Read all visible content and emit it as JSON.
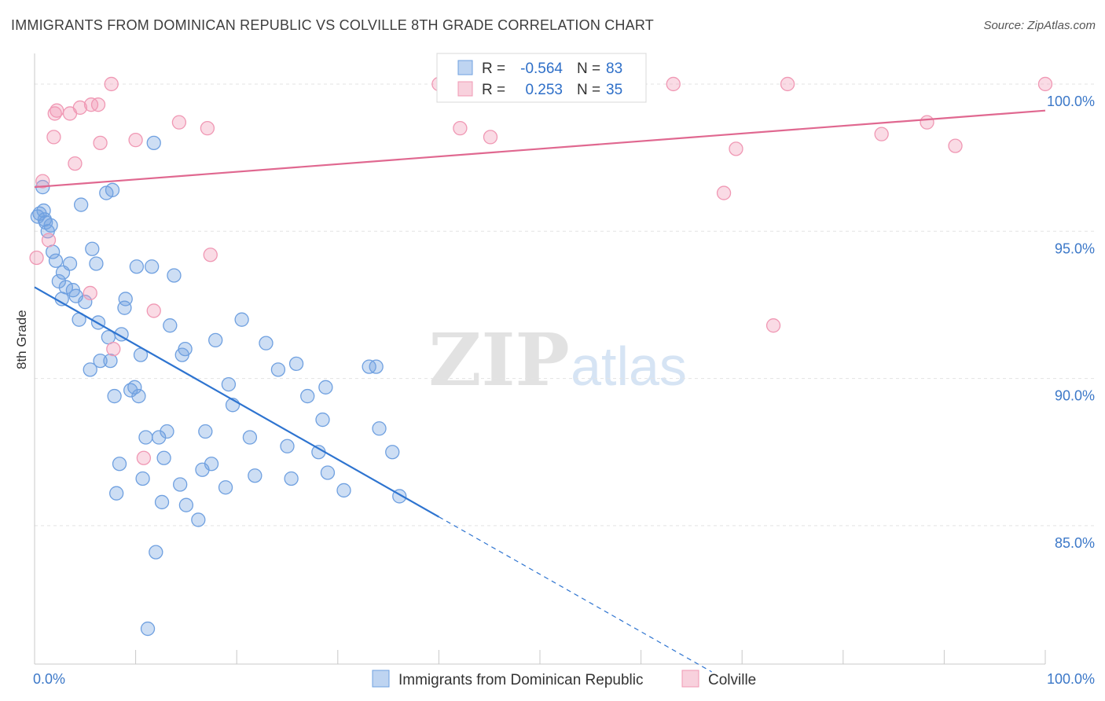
{
  "header": {
    "title": "IMMIGRANTS FROM DOMINICAN REPUBLIC VS COLVILLE 8TH GRADE CORRELATION CHART",
    "source": "Source: ZipAtlas.com"
  },
  "watermark": {
    "zip": "ZIP",
    "atlas": "atlas"
  },
  "chart_data": {
    "type": "scatter",
    "title": "IMMIGRANTS FROM DOMINICAN REPUBLIC VS COLVILLE 8TH GRADE CORRELATION CHART",
    "ylabel": "8th Grade",
    "xlim": [
      0,
      100
    ],
    "ylim": [
      80.3,
      101.2
    ],
    "x_tick_labels": [
      "0.0%",
      "100.0%"
    ],
    "y_ticks": [
      85,
      90,
      95,
      100
    ],
    "y_tick_labels": [
      "85.0%",
      "90.0%",
      "95.0%",
      "100.0%"
    ],
    "grid": true,
    "legend_position": "bottom",
    "stats": [
      {
        "r_label": "R =",
        "r_value": "-0.564",
        "n_label": "N =",
        "n_value": "83"
      },
      {
        "r_label": "R =",
        "r_value": "0.253",
        "n_label": "N =",
        "n_value": "35"
      }
    ],
    "series": [
      {
        "name": "Immigrants from Dominican Republic",
        "color": "#6fa0e0",
        "line_color": "#2e74d0",
        "trend": {
          "x": [
            0,
            40
          ],
          "y": [
            93.1,
            85.3
          ],
          "extend_to_x": 67
        },
        "points": [
          [
            0.3,
            95.5
          ],
          [
            0.8,
            96.5
          ],
          [
            0.9,
            95.7
          ],
          [
            1.0,
            95.4
          ],
          [
            1.3,
            95.0
          ],
          [
            1.6,
            95.2
          ],
          [
            1.8,
            94.3
          ],
          [
            2.1,
            94.0
          ],
          [
            2.4,
            93.3
          ],
          [
            2.7,
            92.7
          ],
          [
            2.8,
            93.6
          ],
          [
            3.1,
            93.1
          ],
          [
            3.5,
            93.9
          ],
          [
            3.8,
            93.0
          ],
          [
            4.1,
            92.8
          ],
          [
            4.4,
            92.0
          ],
          [
            4.6,
            95.9
          ],
          [
            5.0,
            92.6
          ],
          [
            5.5,
            90.3
          ],
          [
            5.7,
            94.4
          ],
          [
            6.1,
            93.9
          ],
          [
            6.3,
            91.9
          ],
          [
            6.5,
            90.6
          ],
          [
            7.1,
            96.3
          ],
          [
            7.3,
            91.4
          ],
          [
            7.5,
            90.6
          ],
          [
            7.7,
            96.4
          ],
          [
            7.9,
            89.4
          ],
          [
            8.1,
            86.1
          ],
          [
            8.4,
            87.1
          ],
          [
            8.6,
            91.5
          ],
          [
            8.9,
            92.4
          ],
          [
            9.0,
            92.7
          ],
          [
            9.5,
            89.6
          ],
          [
            9.9,
            89.7
          ],
          [
            10.1,
            93.8
          ],
          [
            10.3,
            89.4
          ],
          [
            10.5,
            90.8
          ],
          [
            10.7,
            86.6
          ],
          [
            11.0,
            88.0
          ],
          [
            11.2,
            81.5
          ],
          [
            11.6,
            93.8
          ],
          [
            11.8,
            98.0
          ],
          [
            12.0,
            84.1
          ],
          [
            12.3,
            88.0
          ],
          [
            12.6,
            85.8
          ],
          [
            12.8,
            87.3
          ],
          [
            13.1,
            88.2
          ],
          [
            13.4,
            91.8
          ],
          [
            13.8,
            93.5
          ],
          [
            14.4,
            86.4
          ],
          [
            14.6,
            90.8
          ],
          [
            14.9,
            91.0
          ],
          [
            15.0,
            85.7
          ],
          [
            16.2,
            85.2
          ],
          [
            16.6,
            86.9
          ],
          [
            16.9,
            88.2
          ],
          [
            17.5,
            87.1
          ],
          [
            17.9,
            91.3
          ],
          [
            18.9,
            86.3
          ],
          [
            19.2,
            89.8
          ],
          [
            19.6,
            89.1
          ],
          [
            20.5,
            92.0
          ],
          [
            21.3,
            88.0
          ],
          [
            21.8,
            86.7
          ],
          [
            22.9,
            91.2
          ],
          [
            24.1,
            90.3
          ],
          [
            25.0,
            87.7
          ],
          [
            25.4,
            86.6
          ],
          [
            25.9,
            90.5
          ],
          [
            27.0,
            89.4
          ],
          [
            28.1,
            87.5
          ],
          [
            28.5,
            88.6
          ],
          [
            28.8,
            89.7
          ],
          [
            29.0,
            86.8
          ],
          [
            30.6,
            86.2
          ],
          [
            33.1,
            90.4
          ],
          [
            33.8,
            90.4
          ],
          [
            34.1,
            88.3
          ],
          [
            35.4,
            87.5
          ],
          [
            36.1,
            86.0
          ],
          [
            0.5,
            95.6
          ],
          [
            1.1,
            95.3
          ]
        ]
      },
      {
        "name": "Colville",
        "color": "#f098b4",
        "line_color": "#e06890",
        "trend": {
          "x": [
            0,
            100
          ],
          "y": [
            96.5,
            99.1
          ]
        },
        "points": [
          [
            0.2,
            94.1
          ],
          [
            0.8,
            96.7
          ],
          [
            1.4,
            94.7
          ],
          [
            1.9,
            98.2
          ],
          [
            2.2,
            99.1
          ],
          [
            3.5,
            99.0
          ],
          [
            4.0,
            97.3
          ],
          [
            4.5,
            99.2
          ],
          [
            5.5,
            92.9
          ],
          [
            5.6,
            99.3
          ],
          [
            6.3,
            99.3
          ],
          [
            6.5,
            98.0
          ],
          [
            7.6,
            100.0
          ],
          [
            7.8,
            91.0
          ],
          [
            10.0,
            98.1
          ],
          [
            10.8,
            87.3
          ],
          [
            11.8,
            92.3
          ],
          [
            14.3,
            98.7
          ],
          [
            17.1,
            98.5
          ],
          [
            17.4,
            94.2
          ],
          [
            40.0,
            100.0
          ],
          [
            42.1,
            98.5
          ],
          [
            42.6,
            100.0
          ],
          [
            45.1,
            98.2
          ],
          [
            51.0,
            100.0
          ],
          [
            63.2,
            100.0
          ],
          [
            68.2,
            96.3
          ],
          [
            69.4,
            97.8
          ],
          [
            73.1,
            91.8
          ],
          [
            74.5,
            100.0
          ],
          [
            83.8,
            98.3
          ],
          [
            88.3,
            98.7
          ],
          [
            91.1,
            97.9
          ],
          [
            100.0,
            100.0
          ],
          [
            2.0,
            99.0
          ]
        ]
      }
    ]
  }
}
